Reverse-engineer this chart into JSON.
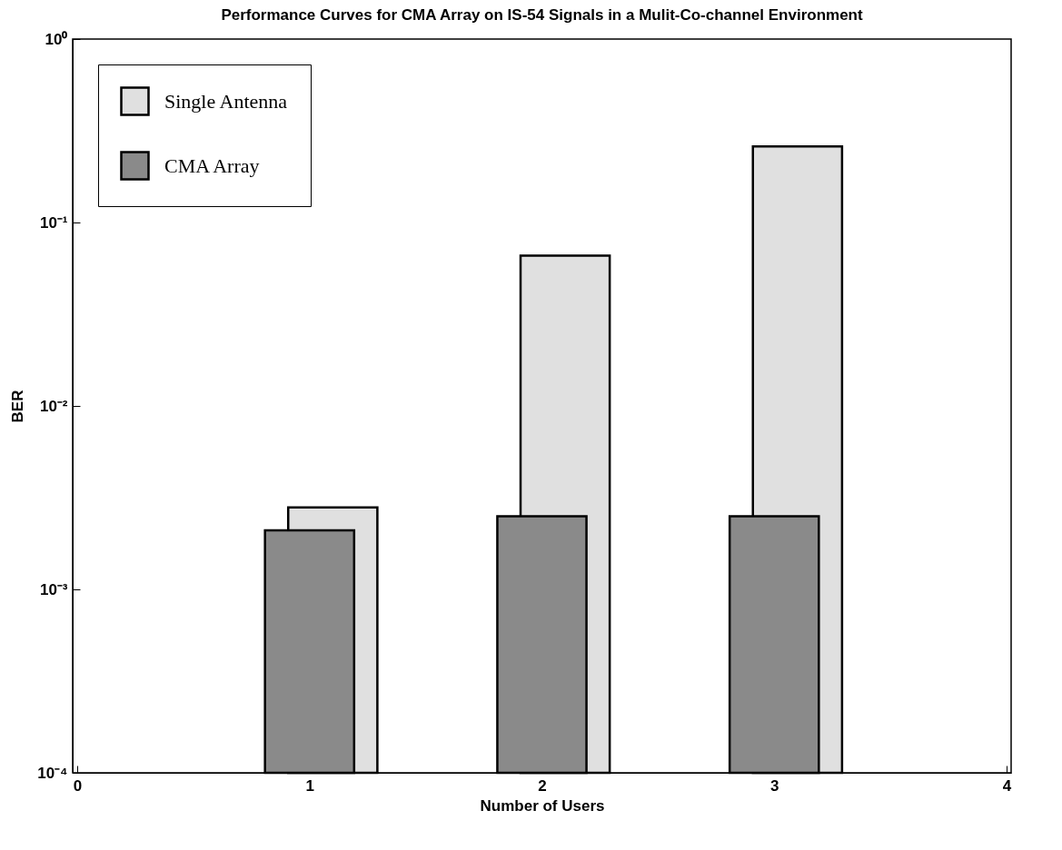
{
  "chart_data": {
    "type": "bar",
    "title": "Performance Curves for CMA Array on IS-54 Signals in a Mulit-Co-channel Environment",
    "xlabel": "Number of Users",
    "ylabel": "BER",
    "log": "y",
    "xlim": [
      0,
      4
    ],
    "xticks": [
      0,
      1,
      2,
      3,
      4
    ],
    "ylim": [
      0.0001,
      1
    ],
    "yticks": [
      {
        "value": 0.0001,
        "label": "10⁻⁴"
      },
      {
        "value": 0.001,
        "label": "10⁻³"
      },
      {
        "value": 0.01,
        "label": "10⁻²"
      },
      {
        "value": 0.1,
        "label": "10⁻¹"
      },
      {
        "value": 1,
        "label": "10⁰"
      }
    ],
    "grid": false,
    "legend": "top left",
    "series": [
      {
        "name": "Single Antenna",
        "color": "#e0e0e0",
        "x": [
          1.1,
          2.1,
          3.1
        ],
        "values": [
          0.0028,
          0.066,
          0.26
        ]
      },
      {
        "name": "CMA Array",
        "color": "#8a8a8a",
        "x": [
          1,
          2,
          3
        ],
        "values": [
          0.0021,
          0.0025,
          0.0025
        ]
      }
    ]
  }
}
